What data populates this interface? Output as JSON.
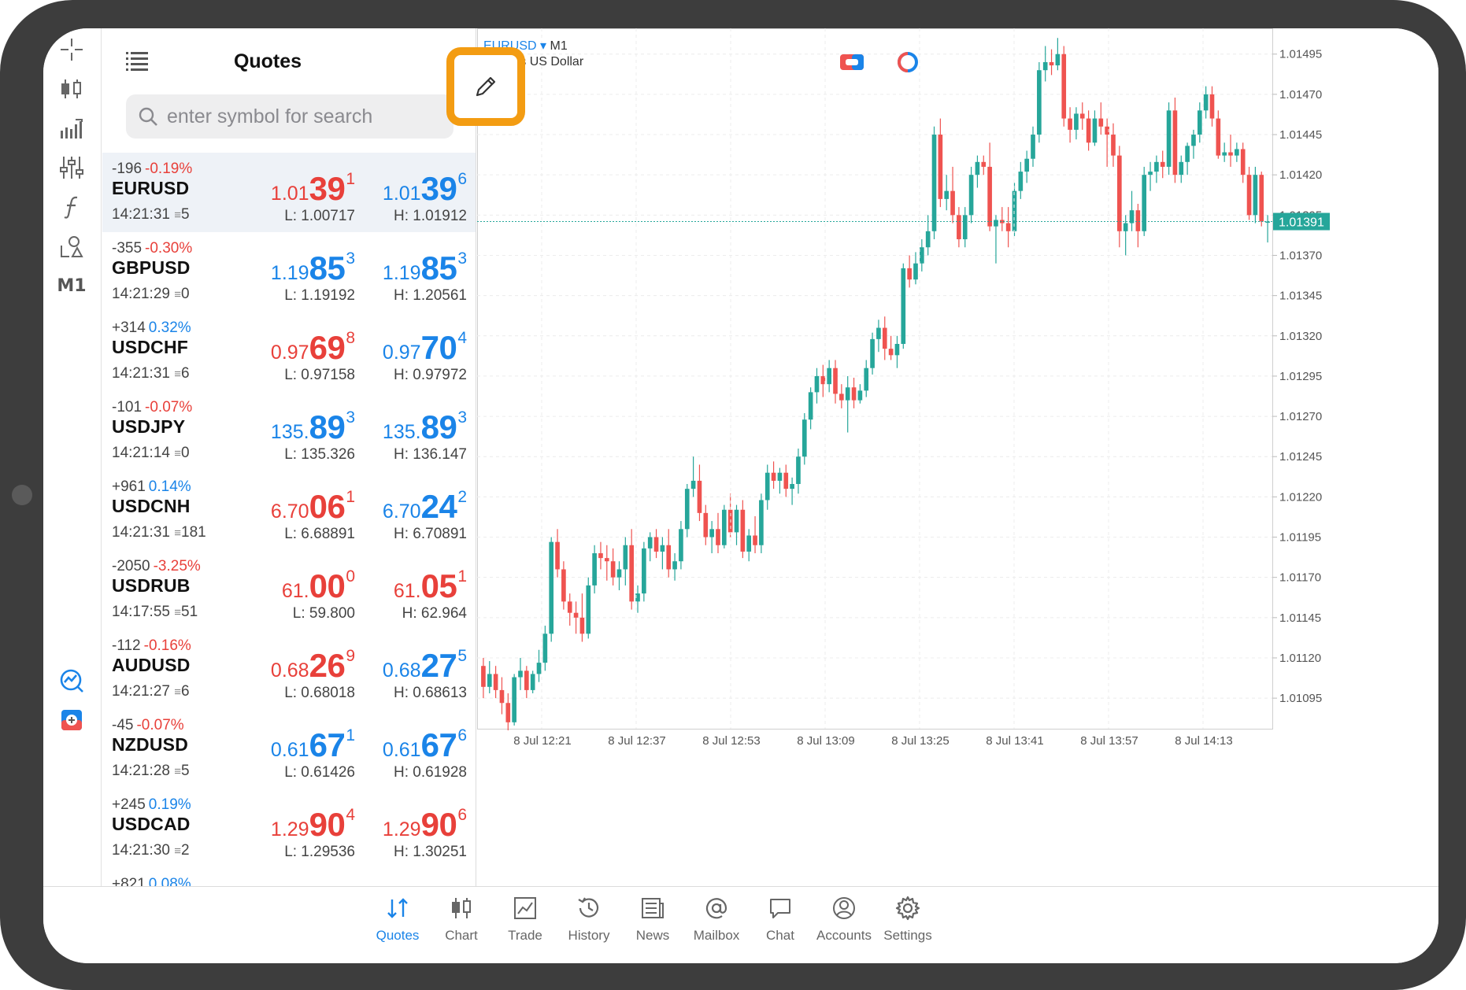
{
  "quotes_panel": {
    "title": "Quotes",
    "search_placeholder": "enter symbol for search"
  },
  "toolbar": {
    "timeframe_label": "M1"
  },
  "quotes": [
    {
      "symbol": "EURUSD",
      "change_points": "-196",
      "change_pct": "-0.19%",
      "change_dir": "down",
      "time": "14:21:31",
      "spread": "5",
      "bid_dir": "down",
      "bid_small": "1.01",
      "bid_big": "39",
      "bid_sup": "1",
      "ask_dir": "up",
      "ask_small": "1.01",
      "ask_big": "39",
      "ask_sup": "6",
      "low": "L: 1.00717",
      "high": "H: 1.01912",
      "selected": true
    },
    {
      "symbol": "GBPUSD",
      "change_points": "-355",
      "change_pct": "-0.30%",
      "change_dir": "down",
      "time": "14:21:29",
      "spread": "0",
      "bid_dir": "up",
      "bid_small": "1.19",
      "bid_big": "85",
      "bid_sup": "3",
      "ask_dir": "up",
      "ask_small": "1.19",
      "ask_big": "85",
      "ask_sup": "3",
      "low": "L: 1.19192",
      "high": "H: 1.20561",
      "selected": false
    },
    {
      "symbol": "USDCHF",
      "change_points": "+314",
      "change_pct": "0.32%",
      "change_dir": "up",
      "time": "14:21:31",
      "spread": "6",
      "bid_dir": "down",
      "bid_small": "0.97",
      "bid_big": "69",
      "bid_sup": "8",
      "ask_dir": "up",
      "ask_small": "0.97",
      "ask_big": "70",
      "ask_sup": "4",
      "low": "L: 0.97158",
      "high": "H: 0.97972",
      "selected": false
    },
    {
      "symbol": "USDJPY",
      "change_points": "-101",
      "change_pct": "-0.07%",
      "change_dir": "down",
      "time": "14:21:14",
      "spread": "0",
      "bid_dir": "up",
      "bid_small": "135.",
      "bid_big": "89",
      "bid_sup": "3",
      "ask_dir": "up",
      "ask_small": "135.",
      "ask_big": "89",
      "ask_sup": "3",
      "low": "L: 135.326",
      "high": "H: 136.147",
      "selected": false
    },
    {
      "symbol": "USDCNH",
      "change_points": "+961",
      "change_pct": "0.14%",
      "change_dir": "up",
      "time": "14:21:31",
      "spread": "181",
      "bid_dir": "down",
      "bid_small": "6.70",
      "bid_big": "06",
      "bid_sup": "1",
      "ask_dir": "up",
      "ask_small": "6.70",
      "ask_big": "24",
      "ask_sup": "2",
      "low": "L: 6.68891",
      "high": "H: 6.70891",
      "selected": false
    },
    {
      "symbol": "USDRUB",
      "change_points": "-2050",
      "change_pct": "-3.25%",
      "change_dir": "down",
      "time": "14:17:55",
      "spread": "51",
      "bid_dir": "down",
      "bid_small": "61.",
      "bid_big": "00",
      "bid_sup": "0",
      "ask_dir": "down",
      "ask_small": "61.",
      "ask_big": "05",
      "ask_sup": "1",
      "low": "L: 59.800",
      "high": "H: 62.964",
      "selected": false
    },
    {
      "symbol": "AUDUSD",
      "change_points": "-112",
      "change_pct": "-0.16%",
      "change_dir": "down",
      "time": "14:21:27",
      "spread": "6",
      "bid_dir": "down",
      "bid_small": "0.68",
      "bid_big": "26",
      "bid_sup": "9",
      "ask_dir": "up",
      "ask_small": "0.68",
      "ask_big": "27",
      "ask_sup": "5",
      "low": "L: 0.68018",
      "high": "H: 0.68613",
      "selected": false
    },
    {
      "symbol": "NZDUSD",
      "change_points": "-45",
      "change_pct": "-0.07%",
      "change_dir": "down",
      "time": "14:21:28",
      "spread": "5",
      "bid_dir": "up",
      "bid_small": "0.61",
      "bid_big": "67",
      "bid_sup": "1",
      "ask_dir": "up",
      "ask_small": "0.61",
      "ask_big": "67",
      "ask_sup": "6",
      "low": "L: 0.61426",
      "high": "H: 0.61928",
      "selected": false
    },
    {
      "symbol": "USDCAD",
      "change_points": "+245",
      "change_pct": "0.19%",
      "change_dir": "up",
      "time": "14:21:30",
      "spread": "2",
      "bid_dir": "down",
      "bid_small": "1.29",
      "bid_big": "90",
      "bid_sup": "4",
      "ask_dir": "down",
      "ask_small": "1.29",
      "ask_big": "90",
      "ask_sup": "6",
      "low": "L: 1.29536",
      "high": "H: 1.30251",
      "selected": false
    },
    {
      "symbol": "",
      "change_points": "+821",
      "change_pct": "0.08%",
      "change_dir": "up",
      "time": "",
      "spread": "",
      "bid_dir": "up",
      "bid_small": "",
      "bid_big": "",
      "bid_sup": "",
      "ask_dir": "up",
      "ask_small": "",
      "ask_big": "",
      "ask_sup": "",
      "low": "",
      "high": "",
      "selected": false
    }
  ],
  "chart": {
    "symbol": "EURUSD",
    "dropdown_glyph": "▾",
    "timeframe": "M1",
    "description": "Euro vs US Dollar",
    "current_price": "1.01391"
  },
  "chart_data": {
    "type": "candlestick",
    "price_axis": [
      "1.01495",
      "1.01470",
      "1.01445",
      "1.01420",
      "1.01395",
      "1.01370",
      "1.01345",
      "1.01320",
      "1.01295",
      "1.01270",
      "1.01245",
      "1.01220",
      "1.01195",
      "1.01170",
      "1.01145",
      "1.01120",
      "1.01095"
    ],
    "ylim": [
      1.01076,
      1.01511
    ],
    "time_axis": [
      "8 Jul 12:21",
      "8 Jul 12:37",
      "8 Jul 12:53",
      "8 Jul 13:09",
      "8 Jul 13:25",
      "8 Jul 13:41",
      "8 Jul 13:57",
      "8 Jul 14:13"
    ],
    "current_price": 1.01391,
    "up_color": "#26a69a",
    "down_color": "#ef5350",
    "candles": [
      [
        1.01115,
        1.0112,
        1.01095,
        1.01102
      ],
      [
        1.01102,
        1.01118,
        1.01098,
        1.0111
      ],
      [
        1.0111,
        1.01115,
        1.01095,
        1.011
      ],
      [
        1.011,
        1.01108,
        1.01085,
        1.01092
      ],
      [
        1.01092,
        1.01098,
        1.01075,
        1.0108
      ],
      [
        1.0108,
        1.0111,
        1.01078,
        1.01108
      ],
      [
        1.01108,
        1.0112,
        1.011,
        1.01112
      ],
      [
        1.01112,
        1.01115,
        1.01095,
        1.011
      ],
      [
        1.011,
        1.01112,
        1.01098,
        1.0111
      ],
      [
        1.0111,
        1.01125,
        1.01105,
        1.01117
      ],
      [
        1.01117,
        1.0114,
        1.01112,
        1.01135
      ],
      [
        1.01135,
        1.01195,
        1.0113,
        1.01192
      ],
      [
        1.01192,
        1.012,
        1.0117,
        1.01175
      ],
      [
        1.01175,
        1.0118,
        1.0115,
        1.01155
      ],
      [
        1.01155,
        1.0116,
        1.0114,
        1.01148
      ],
      [
        1.01148,
        1.01155,
        1.01135,
        1.01145
      ],
      [
        1.01145,
        1.0116,
        1.0113,
        1.01135
      ],
      [
        1.01135,
        1.0117,
        1.01132,
        1.01165
      ],
      [
        1.01165,
        1.0119,
        1.0116,
        1.01185
      ],
      [
        1.01185,
        1.01192,
        1.01175,
        1.01182
      ],
      [
        1.01182,
        1.0119,
        1.01168,
        1.0118
      ],
      [
        1.0118,
        1.01188,
        1.01165,
        1.0117
      ],
      [
        1.0117,
        1.0118,
        1.01162,
        1.01175
      ],
      [
        1.01175,
        1.01195,
        1.01165,
        1.0119
      ],
      [
        1.0119,
        1.012,
        1.0115,
        1.01155
      ],
      [
        1.01155,
        1.01165,
        1.01148,
        1.0116
      ],
      [
        1.0116,
        1.01192,
        1.01155,
        1.01188
      ],
      [
        1.01188,
        1.01198,
        1.0118,
        1.01195
      ],
      [
        1.01195,
        1.012,
        1.01182,
        1.01186
      ],
      [
        1.01186,
        1.01195,
        1.01175,
        1.0119
      ],
      [
        1.0119,
        1.012,
        1.0117,
        1.01175
      ],
      [
        1.01175,
        1.01185,
        1.01168,
        1.0118
      ],
      [
        1.0118,
        1.01205,
        1.01175,
        1.012
      ],
      [
        1.012,
        1.01228,
        1.01195,
        1.01225
      ],
      [
        1.01225,
        1.01245,
        1.0122,
        1.0123
      ],
      [
        1.0123,
        1.0124,
        1.01205,
        1.0121
      ],
      [
        1.0121,
        1.01215,
        1.0119,
        1.01195
      ],
      [
        1.01195,
        1.01205,
        1.01185,
        1.012
      ],
      [
        1.012,
        1.0121,
        1.01185,
        1.0119
      ],
      [
        1.0119,
        1.01215,
        1.01188,
        1.01212
      ],
      [
        1.01212,
        1.01222,
        1.01195,
        1.01198
      ],
      [
        1.01198,
        1.01215,
        1.0119,
        1.01212
      ],
      [
        1.01212,
        1.01218,
        1.01182,
        1.01186
      ],
      [
        1.01186,
        1.012,
        1.0118,
        1.01196
      ],
      [
        1.01196,
        1.01208,
        1.01185,
        1.0119
      ],
      [
        1.0119,
        1.01222,
        1.01185,
        1.01218
      ],
      [
        1.01218,
        1.0124,
        1.01212,
        1.01235
      ],
      [
        1.01235,
        1.01242,
        1.01225,
        1.0123
      ],
      [
        1.0123,
        1.01238,
        1.01222,
        1.01235
      ],
      [
        1.01235,
        1.0124,
        1.0122,
        1.01225
      ],
      [
        1.01225,
        1.01232,
        1.01215,
        1.01228
      ],
      [
        1.01228,
        1.0125,
        1.01222,
        1.01245
      ],
      [
        1.01245,
        1.01272,
        1.0124,
        1.01268
      ],
      [
        1.01268,
        1.01288,
        1.01262,
        1.01285
      ],
      [
        1.01285,
        1.013,
        1.01278,
        1.01295
      ],
      [
        1.01295,
        1.01302,
        1.01282,
        1.0129
      ],
      [
        1.0129,
        1.01305,
        1.01285,
        1.013
      ],
      [
        1.013,
        1.01305,
        1.01278,
        1.01284
      ],
      [
        1.01284,
        1.0129,
        1.01275,
        1.0128
      ],
      [
        1.0128,
        1.01295,
        1.0126,
        1.01288
      ],
      [
        1.01288,
        1.01294,
        1.01275,
        1.0128
      ],
      [
        1.0128,
        1.0129,
        1.01278,
        1.01286
      ],
      [
        1.01286,
        1.01305,
        1.01282,
        1.013
      ],
      [
        1.013,
        1.01322,
        1.01296,
        1.01318
      ],
      [
        1.01318,
        1.0133,
        1.0131,
        1.01325
      ],
      [
        1.01325,
        1.01332,
        1.01305,
        1.01312
      ],
      [
        1.01312,
        1.0132,
        1.01305,
        1.01308
      ],
      [
        1.01308,
        1.0132,
        1.013,
        1.01315
      ],
      [
        1.01315,
        1.01365,
        1.01312,
        1.01362
      ],
      [
        1.01362,
        1.0137,
        1.0135,
        1.01355
      ],
      [
        1.01355,
        1.01372,
        1.01352,
        1.01365
      ],
      [
        1.01365,
        1.0138,
        1.0136,
        1.01375
      ],
      [
        1.01375,
        1.01395,
        1.0137,
        1.01385
      ],
      [
        1.01385,
        1.0145,
        1.0138,
        1.01445
      ],
      [
        1.01445,
        1.01455,
        1.014,
        1.01405
      ],
      [
        1.01405,
        1.0142,
        1.01398,
        1.0141
      ],
      [
        1.0141,
        1.01425,
        1.0139,
        1.01395
      ],
      [
        1.01395,
        1.014,
        1.01375,
        1.0138
      ],
      [
        1.0138,
        1.014,
        1.01375,
        1.01395
      ],
      [
        1.01395,
        1.01425,
        1.0139,
        1.0142
      ],
      [
        1.0142,
        1.01432,
        1.01412,
        1.01428
      ],
      [
        1.01428,
        1.01432,
        1.0142,
        1.01425
      ],
      [
        1.01425,
        1.0144,
        1.01385,
        1.01388
      ],
      [
        1.01388,
        1.01395,
        1.01365,
        1.01392
      ],
      [
        1.01392,
        1.014,
        1.01385,
        1.0139
      ],
      [
        1.0139,
        1.014,
        1.01375,
        1.01385
      ],
      [
        1.01385,
        1.01415,
        1.01382,
        1.0141
      ],
      [
        1.0141,
        1.01428,
        1.01405,
        1.01422
      ],
      [
        1.01422,
        1.01435,
        1.01415,
        1.0143
      ],
      [
        1.0143,
        1.0145,
        1.01425,
        1.01445
      ],
      [
        1.01445,
        1.0149,
        1.0144,
        1.01485
      ],
      [
        1.01485,
        1.015,
        1.01478,
        1.0149
      ],
      [
        1.0149,
        1.01498,
        1.01482,
        1.01488
      ],
      [
        1.01488,
        1.01505,
        1.01485,
        1.01495
      ],
      [
        1.01495,
        1.015,
        1.0145,
        1.01455
      ],
      [
        1.01455,
        1.01462,
        1.0144,
        1.01448
      ],
      [
        1.01448,
        1.01462,
        1.01442,
        1.01458
      ],
      [
        1.01458,
        1.01465,
        1.01448,
        1.01455
      ],
      [
        1.01455,
        1.0146,
        1.01435,
        1.0144
      ],
      [
        1.0144,
        1.0146,
        1.01438,
        1.01455
      ],
      [
        1.01455,
        1.01465,
        1.01445,
        1.0145
      ],
      [
        1.0145,
        1.01455,
        1.01425,
        1.01445
      ],
      [
        1.01445,
        1.01452,
        1.01425,
        1.01432
      ],
      [
        1.01432,
        1.01438,
        1.01375,
        1.01385
      ],
      [
        1.01385,
        1.01395,
        1.0137,
        1.0139
      ],
      [
        1.0139,
        1.0141,
        1.01385,
        1.01398
      ],
      [
        1.01398,
        1.01402,
        1.01375,
        1.01385
      ],
      [
        1.01385,
        1.01425,
        1.01382,
        1.0142
      ],
      [
        1.0142,
        1.01428,
        1.0141,
        1.01422
      ],
      [
        1.01422,
        1.01432,
        1.01415,
        1.01428
      ],
      [
        1.01428,
        1.01435,
        1.01418,
        1.01425
      ],
      [
        1.01425,
        1.01465,
        1.0142,
        1.0146
      ],
      [
        1.0146,
        1.01468,
        1.01415,
        1.0142
      ],
      [
        1.0142,
        1.01432,
        1.01415,
        1.01428
      ],
      [
        1.01428,
        1.0144,
        1.0142,
        1.01438
      ],
      [
        1.01438,
        1.01448,
        1.0143,
        1.01445
      ],
      [
        1.01445,
        1.01465,
        1.0144,
        1.0146
      ],
      [
        1.0146,
        1.01475,
        1.01455,
        1.0147
      ],
      [
        1.0147,
        1.01475,
        1.0145,
        1.01455
      ],
      [
        1.01455,
        1.0146,
        1.0143,
        1.01432
      ],
      [
        1.01432,
        1.0144,
        1.01428,
        1.01434
      ],
      [
        1.01434,
        1.01445,
        1.01425,
        1.01432
      ],
      [
        1.01432,
        1.0144,
        1.01428,
        1.01436
      ],
      [
        1.01436,
        1.0144,
        1.01415,
        1.0142
      ],
      [
        1.0142,
        1.01425,
        1.01392,
        1.01395
      ],
      [
        1.01395,
        1.01425,
        1.0139,
        1.0142
      ],
      [
        1.0142,
        1.01422,
        1.01388,
        1.01391
      ],
      [
        1.01391,
        1.01395,
        1.01378,
        1.01391
      ]
    ]
  },
  "bottom_nav": [
    {
      "key": "quotes",
      "label": "Quotes",
      "active": true
    },
    {
      "key": "chart",
      "label": "Chart",
      "active": false
    },
    {
      "key": "trade",
      "label": "Trade",
      "active": false
    },
    {
      "key": "history",
      "label": "History",
      "active": false
    },
    {
      "key": "news",
      "label": "News",
      "active": false
    },
    {
      "key": "mailbox",
      "label": "Mailbox",
      "active": false
    },
    {
      "key": "chat",
      "label": "Chat",
      "active": false
    },
    {
      "key": "accounts",
      "label": "Accounts",
      "active": false
    },
    {
      "key": "settings",
      "label": "Settings",
      "active": false
    }
  ],
  "colors": {
    "accent_blue": "#1a84e8",
    "price_red": "#e8403a",
    "highlight_orange": "#f39c12",
    "frame_gray": "#3d3d3d"
  }
}
